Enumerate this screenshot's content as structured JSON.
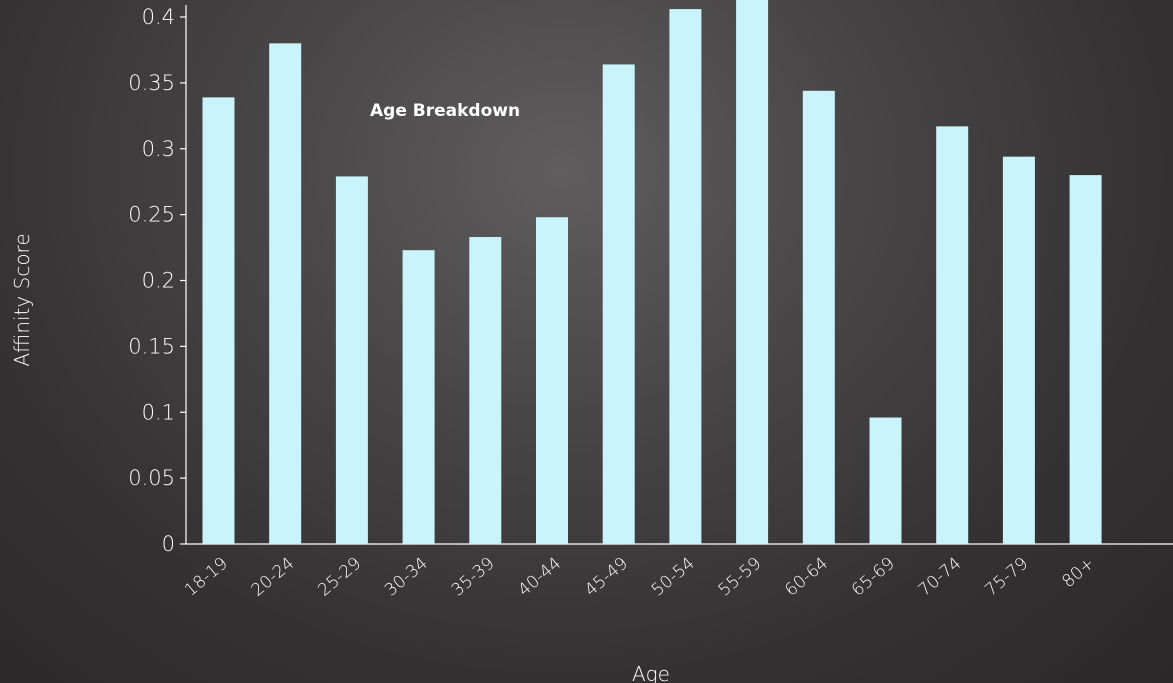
{
  "chart_data": {
    "type": "bar",
    "title": "Age Breakdown",
    "xlabel": "Age",
    "ylabel": "Affinity Score",
    "categories": [
      "18-19",
      "20-24",
      "25-29",
      "30-34",
      "35-39",
      "40-44",
      "45-49",
      "50-54",
      "55-59",
      "60-64",
      "65-69",
      "70-74",
      "75-79",
      "80+"
    ],
    "values": [
      0.339,
      0.38,
      0.279,
      0.223,
      0.233,
      0.248,
      0.364,
      0.406,
      0.42,
      0.344,
      0.096,
      0.317,
      0.294,
      0.28
    ],
    "ylim": [
      0,
      0.4
    ],
    "yticks": [
      "0",
      "0.05",
      "0.1",
      "0.15",
      "0.2",
      "0.25",
      "0.3",
      "0.35",
      "0.4"
    ],
    "grid": false,
    "legend": "none",
    "colors": {
      "bar": "#c9f4fb",
      "axis": "#ffffff",
      "text": "#ffffff"
    }
  }
}
